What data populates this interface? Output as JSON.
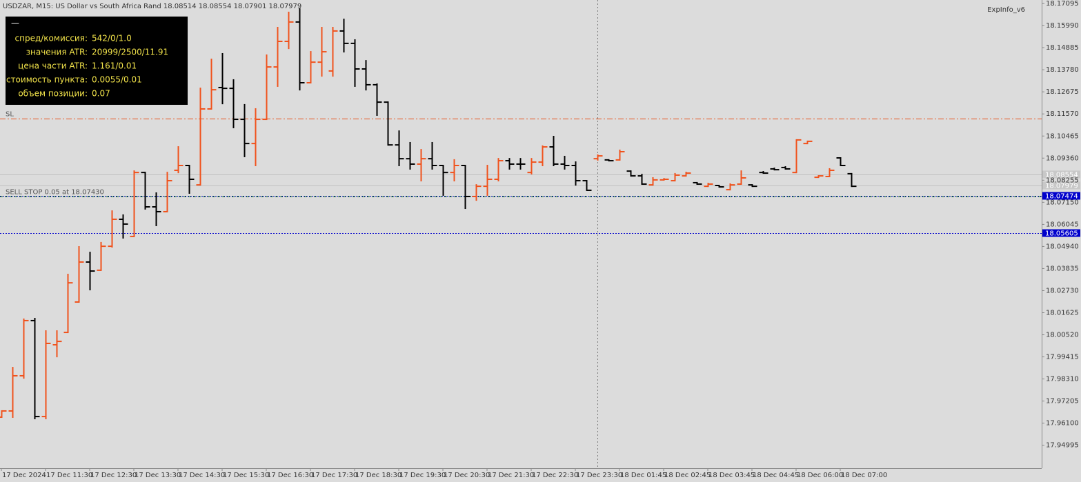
{
  "chart_data": {
    "type": "ohlc",
    "title": "USDZAR, M15:  US Dollar vs South Africa Rand  18.08514 18.08554 18.07901 18.07979",
    "indicator": "ExpInfo_v6",
    "up_color": "#f0521c",
    "down_color": "#000000",
    "categories": [
      "17 Dec 2024",
      null,
      null,
      null,
      "17 Dec 11:30",
      null,
      null,
      null,
      "17 Dec 12:30",
      null,
      null,
      null,
      "17 Dec 13:30",
      null,
      null,
      null,
      "17 Dec 14:30",
      null,
      null,
      null,
      "17 Dec 15:30",
      null,
      null,
      null,
      "17 Dec 16:30",
      null,
      null,
      null,
      "17 Dec 17:30",
      null,
      null,
      null,
      "17 Dec 18:30",
      null,
      null,
      null,
      "17 Dec 19:30",
      null,
      null,
      null,
      "17 Dec 20:30",
      null,
      null,
      null,
      "17 Dec 21:30",
      null,
      null,
      null,
      "17 Dec 22:30",
      null,
      null,
      null,
      "17 Dec 23:30",
      null,
      null,
      null,
      "18 Dec 01:45",
      null,
      null,
      null,
      "18 Dec 02:45",
      null,
      null,
      null,
      "18 Dec 03:45",
      null,
      null,
      null,
      "18 Dec 04:45",
      null,
      null,
      null,
      "18 Dec 06:00",
      null,
      null,
      null,
      "18 Dec 07:00",
      null
    ],
    "open": [
      17.964,
      17.9671,
      17.9847,
      18.0123,
      17.9643,
      18.0002,
      18.0064,
      18.0216,
      18.0416,
      18.0375,
      18.0495,
      18.063,
      18.0544,
      18.0864,
      18.0692,
      18.0668,
      18.0875,
      18.0899,
      18.0802,
      18.1182,
      18.1289,
      18.1285,
      18.113,
      18.1009,
      18.113,
      18.1392,
      18.152,
      18.1617,
      18.1313,
      18.1416,
      18.1372,
      18.1572,
      18.151,
      18.1382,
      18.1303,
      18.1216,
      18.1002,
      18.0933,
      18.0906,
      18.0933,
      18.0899,
      18.0864,
      18.0899,
      18.0744,
      18.0795,
      18.083,
      18.0923,
      18.0906,
      18.0864,
      18.0916,
      18.0992,
      18.0906,
      18.0899,
      18.0823,
      18.0933,
      18.0927,
      18.0927,
      18.0871,
      18.0847,
      18.0802,
      18.0827,
      18.0823,
      18.0847,
      18.0813,
      18.0795,
      18.0799,
      18.0778,
      18.0806,
      18.0802,
      18.0864,
      18.0882,
      18.0889,
      18.0864,
      18.1009,
      18.084,
      18.0844,
      18.0937,
      18.0858
    ],
    "high": [
      17.9671,
      17.9888,
      18.013,
      18.0133,
      18.0071,
      18.0071,
      18.0354,
      18.0492,
      18.0464,
      18.0513,
      18.0671,
      18.0651,
      18.0871,
      18.0864,
      18.0761,
      18.0864,
      18.0992,
      18.0899,
      18.1285,
      18.143,
      18.1458,
      18.1327,
      18.1203,
      18.1182,
      18.1451,
      18.1589,
      18.1665,
      18.1682,
      18.1468,
      18.1589,
      18.1589,
      18.163,
      18.1527,
      18.1423,
      18.1306,
      18.1216,
      18.1071,
      18.1013,
      18.0978,
      18.1013,
      18.0899,
      18.0927,
      18.0899,
      18.0802,
      18.0899,
      18.0933,
      18.0933,
      18.0933,
      18.0933,
      18.0996,
      18.1044,
      18.0944,
      18.0916,
      18.0823,
      18.0951,
      18.0927,
      18.0975,
      18.0871,
      18.0854,
      18.0837,
      18.0833,
      18.0858,
      18.0864,
      18.0813,
      18.0809,
      18.0799,
      18.0806,
      18.0871,
      18.0802,
      18.0868,
      18.0885,
      18.0892,
      18.1027,
      18.102,
      18.0847,
      18.0882,
      18.0937,
      18.0858
    ],
    "low": [
      17.964,
      17.964,
      17.9836,
      17.9633,
      17.9633,
      17.9943,
      18.0064,
      18.0216,
      18.0278,
      18.0375,
      18.0492,
      18.0537,
      18.0544,
      18.0682,
      18.0599,
      18.0668,
      18.0864,
      18.0761,
      18.0802,
      18.1182,
      18.1209,
      18.1089,
      18.0944,
      18.0899,
      18.113,
      18.1296,
      18.1485,
      18.1278,
      18.1313,
      18.1347,
      18.1347,
      18.1468,
      18.1296,
      18.1278,
      18.1151,
      18.1002,
      18.0899,
      18.0882,
      18.0823,
      18.0882,
      18.0751,
      18.0823,
      18.0685,
      18.0726,
      18.0751,
      18.0823,
      18.0882,
      18.0882,
      18.0858,
      18.0899,
      18.0899,
      18.0882,
      18.0802,
      18.0775,
      18.0927,
      18.0923,
      18.0927,
      18.0847,
      18.0806,
      18.0802,
      18.0827,
      18.0823,
      18.0847,
      18.0806,
      18.0795,
      18.0792,
      18.0778,
      18.0806,
      18.0795,
      18.0861,
      18.0878,
      18.0882,
      18.0864,
      18.1009,
      18.084,
      18.0844,
      18.0899,
      18.0795
    ],
    "close": [
      17.9671,
      17.9847,
      18.0123,
      17.9643,
      18.0009,
      18.0019,
      18.0312,
      18.0416,
      18.0371,
      18.0495,
      18.063,
      18.0606,
      18.0864,
      18.0692,
      18.0668,
      18.0823,
      18.0899,
      18.083,
      18.1182,
      18.1278,
      18.1285,
      18.113,
      18.1009,
      18.113,
      18.1392,
      18.152,
      18.1617,
      18.1313,
      18.1416,
      18.1468,
      18.1572,
      18.151,
      18.1382,
      18.1303,
      18.1216,
      18.1002,
      18.0933,
      18.0906,
      18.0933,
      18.0899,
      18.0864,
      18.0899,
      18.0744,
      18.0795,
      18.083,
      18.0923,
      18.0906,
      18.0906,
      18.0916,
      18.0992,
      18.0906,
      18.0899,
      18.0823,
      18.0775,
      18.0947,
      18.0923,
      18.0968,
      18.0847,
      18.0806,
      18.0827,
      18.083,
      18.0851,
      18.0861,
      18.0806,
      18.0806,
      18.0792,
      18.0802,
      18.0837,
      18.0795,
      18.0861,
      18.0878,
      18.0882,
      18.1027,
      18.102,
      18.0847,
      18.0875,
      18.0899,
      18.0795
    ],
    "ylim": [
      17.9388,
      18.1727
    ],
    "yticks": [
      18.17095,
      {
        "value": 18.1599,
        "label": "18.15990"
      },
      18.14885,
      {
        "value": 18.1378,
        "label": "18.13780"
      },
      18.12675,
      {
        "value": 18.1157,
        "label": "18.11570"
      },
      18.10465,
      {
        "value": 18.0936,
        "label": "18.09360"
      },
      18.08255,
      {
        "value": 18.0715,
        "label": "18.07150"
      },
      18.06045,
      {
        "value": 18.0494,
        "label": "18.04940"
      },
      18.03835,
      {
        "value": 18.0273,
        "label": "18.02730"
      },
      18.01625,
      {
        "value": 18.0052,
        "label": "18.00520"
      },
      17.99415,
      {
        "value": 17.9831,
        "label": "17.98310"
      },
      17.97205,
      {
        "value": 17.961,
        "label": "17.96100"
      },
      17.94995
    ],
    "levels": [
      {
        "value": 18.1134,
        "color": "#e8501a",
        "dash": "8 3 2 3",
        "text": "SL"
      },
      {
        "value": 18.0743,
        "color": "#1a7a1a",
        "dash": "4 3",
        "text": "SELL STOP 0.05 at 18.07430"
      },
      {
        "value": 18.08554,
        "color": "#c0c0c0",
        "dash": "none",
        "tag": "#c8c8c8"
      },
      {
        "value": 18.07979,
        "color": "#c0c0c0",
        "dash": "none",
        "tag": "#c8c8c8"
      },
      {
        "value": 18.07474,
        "color": "#0000cc",
        "dash": "2 2",
        "tag": "#0000cc"
      },
      {
        "value": 18.05605,
        "color": "#0000cc",
        "dash": "2 2",
        "tag": "#0000cc"
      }
    ]
  },
  "info_panel": {
    "header": "—",
    "rows": [
      [
        "спред/комиссия:",
        "542/0/1.0"
      ],
      [
        "значения ATR:",
        "20999/2500/11.91"
      ],
      [
        "цена части ATR:",
        "1.161/0.01"
      ],
      [
        "стоимость пункта:",
        "0.0055/0.01"
      ],
      [
        "объем позиции:",
        "0.07"
      ]
    ]
  }
}
